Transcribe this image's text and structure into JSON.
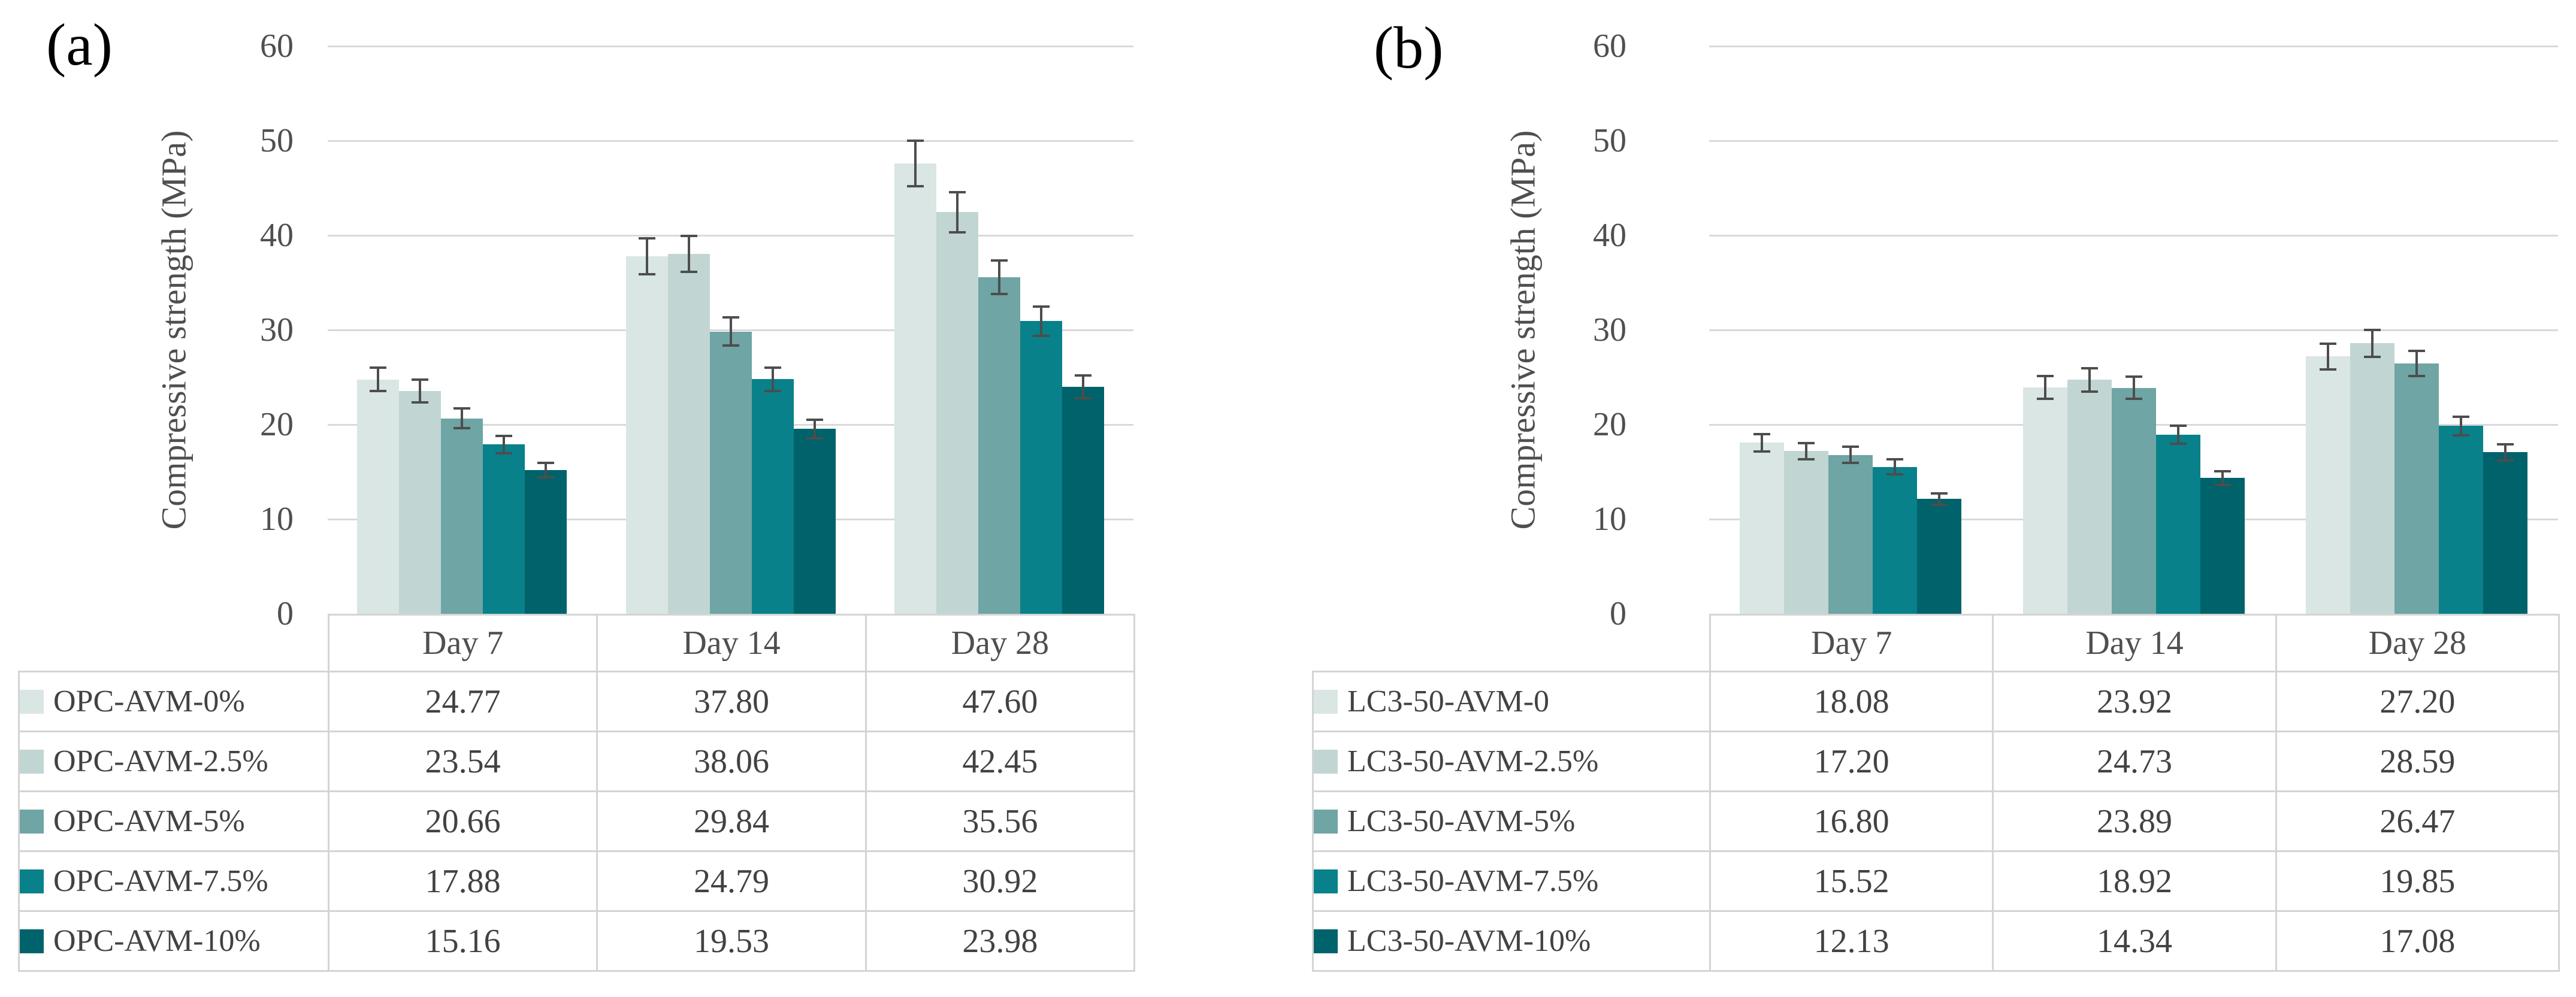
{
  "figure": {
    "description_visible_text_only": "",
    "panel_count": 2
  },
  "chart_data": [
    {
      "type": "bar",
      "title": "(a)",
      "ylabel": "Compressive strength (MPa)",
      "xlabel": "",
      "categories": [
        "Day 7",
        "Day 14",
        "Day 28"
      ],
      "ylim": [
        0,
        60
      ],
      "yticks": [
        0,
        10,
        20,
        30,
        40,
        50,
        60
      ],
      "grid": true,
      "legend_position": "data-table-below-chart",
      "error_bars": true,
      "gridline_color": "#d9d9d9",
      "error_bar_color": "#4d4d4d",
      "series": [
        {
          "name": "OPC-AVM-0%",
          "color": "#d9e6e3",
          "values": [
            24.77,
            37.8,
            47.6
          ],
          "errors": [
            1.24,
            1.89,
            2.38
          ]
        },
        {
          "name": "OPC-AVM-2.5%",
          "color": "#c1d6d3",
          "values": [
            23.54,
            38.06,
            42.45
          ],
          "errors": [
            1.18,
            1.9,
            2.12
          ]
        },
        {
          "name": "OPC-AVM-5%",
          "color": "#6fa5a4",
          "values": [
            20.66,
            29.84,
            35.56
          ],
          "errors": [
            1.03,
            1.49,
            1.78
          ]
        },
        {
          "name": "OPC-AVM-7.5%",
          "color": "#08818a",
          "values": [
            17.88,
            24.79,
            30.92
          ],
          "errors": [
            0.89,
            1.24,
            1.55
          ]
        },
        {
          "name": "OPC-AVM-10%",
          "color": "#00626b",
          "values": [
            15.16,
            19.53,
            23.98
          ],
          "errors": [
            0.76,
            0.98,
            1.2
          ]
        }
      ]
    },
    {
      "type": "bar",
      "title": "(b)",
      "ylabel": "Compressive strength (MPa)",
      "xlabel": "",
      "categories": [
        "Day 7",
        "Day 14",
        "Day 28"
      ],
      "ylim": [
        0,
        60
      ],
      "yticks": [
        0,
        10,
        20,
        30,
        40,
        50,
        60
      ],
      "grid": true,
      "legend_position": "data-table-below-chart",
      "error_bars": true,
      "gridline_color": "#d9d9d9",
      "error_bar_color": "#4d4d4d",
      "series": [
        {
          "name": "LC3-50-AVM-0",
          "color": "#d9e6e3",
          "values": [
            18.08,
            23.92,
            27.2
          ],
          "errors": [
            0.9,
            1.2,
            1.36
          ]
        },
        {
          "name": "LC3-50-AVM-2.5%",
          "color": "#c1d6d3",
          "values": [
            17.2,
            24.73,
            28.59
          ],
          "errors": [
            0.86,
            1.24,
            1.43
          ]
        },
        {
          "name": "LC3-50-AVM-5%",
          "color": "#6fa5a4",
          "values": [
            16.8,
            23.89,
            26.47
          ],
          "errors": [
            0.84,
            1.19,
            1.32
          ]
        },
        {
          "name": "LC3-50-AVM-7.5%",
          "color": "#08818a",
          "values": [
            15.52,
            18.92,
            19.85
          ],
          "errors": [
            0.78,
            0.95,
            0.99
          ]
        },
        {
          "name": "LC3-50-AVM-10%",
          "color": "#00626b",
          "values": [
            12.13,
            14.34,
            17.08
          ],
          "errors": [
            0.61,
            0.72,
            0.85
          ]
        }
      ]
    }
  ]
}
